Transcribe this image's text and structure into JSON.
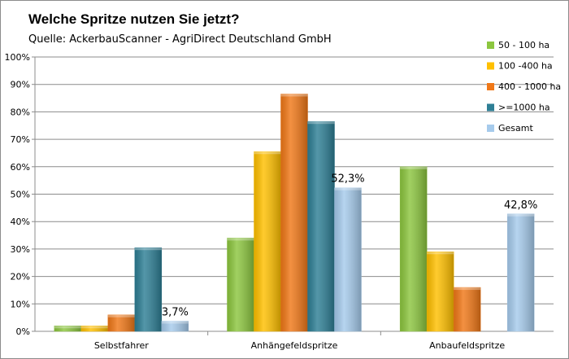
{
  "chart_data": {
    "type": "bar",
    "title": "Welche Spritze nutzen Sie jetzt?",
    "subtitle": "Quelle: AckerbauScanner - AgriDirect Deutschland GmbH",
    "categories": [
      "Selbstfahrer",
      "Anhängefeldspritze",
      "Anbaufeldspritze"
    ],
    "series": [
      {
        "name": "50 - 100 ha",
        "values": [
          2,
          34,
          60
        ],
        "color": "#8cc63f"
      },
      {
        "name": "100 -400 ha",
        "values": [
          2,
          65.5,
          29
        ],
        "color": "#ffc000"
      },
      {
        "name": "400 - 1000 ha",
        "values": [
          6,
          86.5,
          16
        ],
        "color": "#f07818"
      },
      {
        "name": ">=1000 ha",
        "values": [
          30.5,
          76.5,
          null
        ],
        "color": "#2e7f95"
      },
      {
        "name": "Gesamt",
        "values": [
          3.7,
          52.3,
          42.8
        ],
        "color": "#a6cbec"
      }
    ],
    "data_labels": [
      {
        "series": "Gesamt",
        "category": "Selbstfahrer",
        "text": "3,7%"
      },
      {
        "series": "Gesamt",
        "category": "Anhängefeldspritze",
        "text": "52,3%"
      },
      {
        "series": "Gesamt",
        "category": "Anbaufeldspritze",
        "text": "42,8%"
      }
    ],
    "y_ticks": [
      "0%",
      "10%",
      "20%",
      "30%",
      "40%",
      "50%",
      "60%",
      "70%",
      "80%",
      "90%",
      "100%"
    ],
    "ylim": [
      0,
      100
    ],
    "grid": true,
    "legend_position": "top-right"
  }
}
